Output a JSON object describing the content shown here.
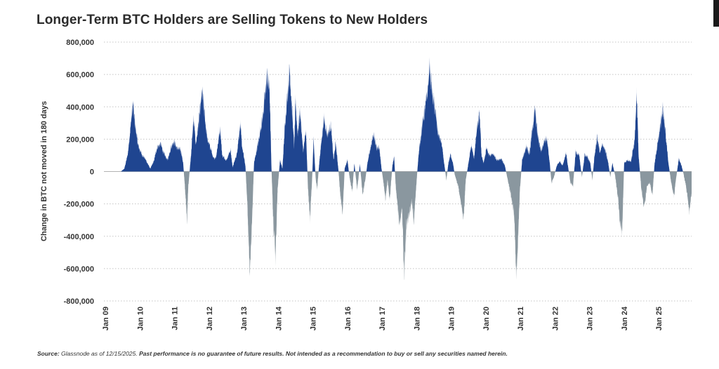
{
  "chart_data": {
    "type": "area",
    "title": "Longer-Term BTC Holders are Selling Tokens to New Holders",
    "xlabel": "",
    "ylabel": "Change in BTC not moved in 180 days",
    "ylim": [
      -800000,
      800000
    ],
    "y_ticks": [
      800000,
      600000,
      400000,
      200000,
      0,
      -200000,
      -400000,
      -600000,
      -800000
    ],
    "y_tick_labels": [
      "800,000",
      "600,000",
      "400,000",
      "200,000",
      "0",
      "-200,000",
      "-400,000",
      "-600,000",
      "-800,000"
    ],
    "x_range": [
      2009.0,
      2025.95
    ],
    "x_ticks": [
      2009,
      2010,
      2011,
      2012,
      2013,
      2014,
      2015,
      2016,
      2017,
      2018,
      2019,
      2020,
      2021,
      2022,
      2023,
      2024,
      2025
    ],
    "x_tick_labels": [
      "Jan 09",
      "Jan 10",
      "Jan 11",
      "Jan 12",
      "Jan 13",
      "Jan 14",
      "Jan 15",
      "Jan 16",
      "Jan 17",
      "Jan 18",
      "Jan 19",
      "Jan 20",
      "Jan 21",
      "Jan 22",
      "Jan 23",
      "Jan 24",
      "Jan 25"
    ],
    "grid": true,
    "positive_color": "#1f4590",
    "negative_color": "#8a979f",
    "series": [
      {
        "name": "Change in BTC not moved in 180 days",
        "points": [
          [
            2009.0,
            0
          ],
          [
            2009.45,
            0
          ],
          [
            2009.55,
            20000
          ],
          [
            2009.65,
            120000
          ],
          [
            2009.75,
            360000
          ],
          [
            2009.8,
            470000
          ],
          [
            2009.86,
            320000
          ],
          [
            2009.95,
            180000
          ],
          [
            2010.05,
            120000
          ],
          [
            2010.15,
            90000
          ],
          [
            2010.3,
            20000
          ],
          [
            2010.4,
            70000
          ],
          [
            2010.5,
            170000
          ],
          [
            2010.6,
            190000
          ],
          [
            2010.7,
            120000
          ],
          [
            2010.8,
            80000
          ],
          [
            2010.9,
            170000
          ],
          [
            2010.98,
            210000
          ],
          [
            2011.08,
            160000
          ],
          [
            2011.18,
            150000
          ],
          [
            2011.25,
            60000
          ],
          [
            2011.32,
            -170000
          ],
          [
            2011.36,
            -360000
          ],
          [
            2011.4,
            -100000
          ],
          [
            2011.48,
            120000
          ],
          [
            2011.55,
            360000
          ],
          [
            2011.62,
            190000
          ],
          [
            2011.72,
            380000
          ],
          [
            2011.8,
            550000
          ],
          [
            2011.88,
            370000
          ],
          [
            2011.95,
            220000
          ],
          [
            2012.05,
            160000
          ],
          [
            2012.12,
            90000
          ],
          [
            2012.2,
            100000
          ],
          [
            2012.32,
            300000
          ],
          [
            2012.38,
            110000
          ],
          [
            2012.5,
            80000
          ],
          [
            2012.62,
            150000
          ],
          [
            2012.68,
            30000
          ],
          [
            2012.8,
            120000
          ],
          [
            2012.9,
            330000
          ],
          [
            2012.95,
            180000
          ],
          [
            2013.05,
            40000
          ],
          [
            2013.1,
            -200000
          ],
          [
            2013.18,
            -710000
          ],
          [
            2013.24,
            -350000
          ],
          [
            2013.3,
            60000
          ],
          [
            2013.42,
            200000
          ],
          [
            2013.55,
            380000
          ],
          [
            2013.68,
            670000
          ],
          [
            2013.75,
            560000
          ],
          [
            2013.8,
            50000
          ],
          [
            2013.86,
            -380000
          ],
          [
            2013.92,
            -600000
          ],
          [
            2013.98,
            -130000
          ],
          [
            2014.05,
            80000
          ],
          [
            2014.12,
            20000
          ],
          [
            2014.2,
            350000
          ],
          [
            2014.33,
            710000
          ],
          [
            2014.4,
            420000
          ],
          [
            2014.46,
            170000
          ],
          [
            2014.5,
            480000
          ],
          [
            2014.56,
            260000
          ],
          [
            2014.63,
            420000
          ],
          [
            2014.72,
            140000
          ],
          [
            2014.8,
            280000
          ],
          [
            2014.86,
            -120000
          ],
          [
            2014.92,
            -330000
          ],
          [
            2014.98,
            -40000
          ],
          [
            2015.02,
            220000
          ],
          [
            2015.08,
            -40000
          ],
          [
            2015.12,
            -130000
          ],
          [
            2015.2,
            100000
          ],
          [
            2015.32,
            370000
          ],
          [
            2015.42,
            250000
          ],
          [
            2015.52,
            320000
          ],
          [
            2015.6,
            80000
          ],
          [
            2015.66,
            200000
          ],
          [
            2015.74,
            10000
          ],
          [
            2015.8,
            -180000
          ],
          [
            2015.86,
            -300000
          ],
          [
            2015.92,
            20000
          ],
          [
            2016.0,
            80000
          ],
          [
            2016.06,
            -40000
          ],
          [
            2016.14,
            -140000
          ],
          [
            2016.2,
            60000
          ],
          [
            2016.28,
            -130000
          ],
          [
            2016.36,
            50000
          ],
          [
            2016.44,
            -160000
          ],
          [
            2016.52,
            -50000
          ],
          [
            2016.58,
            60000
          ],
          [
            2016.68,
            180000
          ],
          [
            2016.75,
            260000
          ],
          [
            2016.85,
            160000
          ],
          [
            2016.92,
            170000
          ],
          [
            2016.98,
            30000
          ],
          [
            2017.05,
            -90000
          ],
          [
            2017.1,
            -200000
          ],
          [
            2017.16,
            -60000
          ],
          [
            2017.22,
            -200000
          ],
          [
            2017.3,
            40000
          ],
          [
            2017.35,
            100000
          ],
          [
            2017.4,
            -120000
          ],
          [
            2017.5,
            -360000
          ],
          [
            2017.58,
            -250000
          ],
          [
            2017.64,
            -730000
          ],
          [
            2017.7,
            -380000
          ],
          [
            2017.78,
            -300000
          ],
          [
            2017.86,
            -200000
          ],
          [
            2017.92,
            -350000
          ],
          [
            2017.98,
            -130000
          ],
          [
            2018.05,
            100000
          ],
          [
            2018.15,
            300000
          ],
          [
            2018.3,
            520000
          ],
          [
            2018.38,
            720000
          ],
          [
            2018.45,
            540000
          ],
          [
            2018.55,
            400000
          ],
          [
            2018.62,
            260000
          ],
          [
            2018.72,
            200000
          ],
          [
            2018.8,
            50000
          ],
          [
            2018.86,
            -60000
          ],
          [
            2018.92,
            60000
          ],
          [
            2018.98,
            120000
          ],
          [
            2019.05,
            60000
          ],
          [
            2019.1,
            -20000
          ],
          [
            2019.2,
            -100000
          ],
          [
            2019.3,
            -240000
          ],
          [
            2019.36,
            -320000
          ],
          [
            2019.42,
            -60000
          ],
          [
            2019.5,
            60000
          ],
          [
            2019.58,
            180000
          ],
          [
            2019.66,
            90000
          ],
          [
            2019.74,
            300000
          ],
          [
            2019.82,
            390000
          ],
          [
            2019.88,
            100000
          ],
          [
            2019.94,
            60000
          ],
          [
            2020.02,
            160000
          ],
          [
            2020.1,
            110000
          ],
          [
            2020.22,
            120000
          ],
          [
            2020.32,
            80000
          ],
          [
            2020.45,
            90000
          ],
          [
            2020.55,
            40000
          ],
          [
            2020.62,
            -40000
          ],
          [
            2020.72,
            -160000
          ],
          [
            2020.82,
            -300000
          ],
          [
            2020.88,
            -700000
          ],
          [
            2020.94,
            -450000
          ],
          [
            2020.98,
            -150000
          ],
          [
            2021.05,
            80000
          ],
          [
            2021.18,
            180000
          ],
          [
            2021.26,
            120000
          ],
          [
            2021.35,
            300000
          ],
          [
            2021.42,
            430000
          ],
          [
            2021.5,
            250000
          ],
          [
            2021.6,
            140000
          ],
          [
            2021.68,
            210000
          ],
          [
            2021.76,
            230000
          ],
          [
            2021.84,
            80000
          ],
          [
            2021.9,
            -80000
          ],
          [
            2021.98,
            -30000
          ],
          [
            2022.05,
            40000
          ],
          [
            2022.14,
            70000
          ],
          [
            2022.22,
            40000
          ],
          [
            2022.32,
            130000
          ],
          [
            2022.38,
            30000
          ],
          [
            2022.45,
            -80000
          ],
          [
            2022.52,
            -100000
          ],
          [
            2022.6,
            140000
          ],
          [
            2022.7,
            110000
          ],
          [
            2022.78,
            -40000
          ],
          [
            2022.86,
            120000
          ],
          [
            2022.94,
            100000
          ],
          [
            2023.02,
            60000
          ],
          [
            2023.08,
            -60000
          ],
          [
            2023.14,
            100000
          ],
          [
            2023.22,
            240000
          ],
          [
            2023.3,
            130000
          ],
          [
            2023.38,
            190000
          ],
          [
            2023.46,
            140000
          ],
          [
            2023.54,
            60000
          ],
          [
            2023.6,
            -40000
          ],
          [
            2023.66,
            60000
          ],
          [
            2023.74,
            -30000
          ],
          [
            2023.82,
            -180000
          ],
          [
            2023.88,
            -360000
          ],
          [
            2023.94,
            -430000
          ],
          [
            2024.0,
            60000
          ],
          [
            2024.1,
            80000
          ],
          [
            2024.2,
            70000
          ],
          [
            2024.3,
            220000
          ],
          [
            2024.36,
            540000
          ],
          [
            2024.42,
            100000
          ],
          [
            2024.5,
            -130000
          ],
          [
            2024.58,
            -250000
          ],
          [
            2024.66,
            -100000
          ],
          [
            2024.74,
            -80000
          ],
          [
            2024.82,
            -160000
          ],
          [
            2024.88,
            60000
          ],
          [
            2024.96,
            180000
          ],
          [
            2025.04,
            300000
          ],
          [
            2025.12,
            450000
          ],
          [
            2025.2,
            260000
          ],
          [
            2025.28,
            60000
          ],
          [
            2025.36,
            -80000
          ],
          [
            2025.44,
            -170000
          ],
          [
            2025.5,
            -50000
          ],
          [
            2025.58,
            90000
          ],
          [
            2025.66,
            40000
          ],
          [
            2025.72,
            -20000
          ],
          [
            2025.8,
            -120000
          ],
          [
            2025.88,
            -280000
          ],
          [
            2025.95,
            -160000
          ]
        ]
      }
    ]
  },
  "footer": {
    "source_label": "Source:",
    "source_text": " Glassnode as of 12/15/2025. ",
    "disclaimer": "Past performance is no guarantee of future results. Not intended as a recommendation to buy or sell any securities named herein."
  }
}
